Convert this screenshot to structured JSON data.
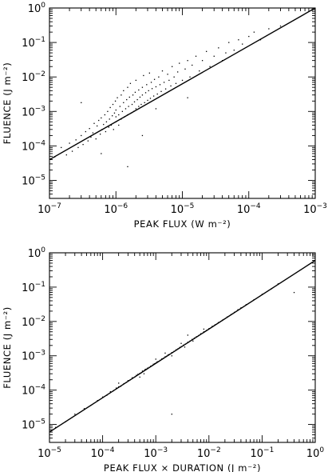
{
  "chart_data": [
    {
      "type": "scatter",
      "title": "",
      "xlabel": "PEAK FLUX (W m⁻²)",
      "ylabel": "FLUENCE (J m⁻²)",
      "xscale": "log",
      "yscale": "log",
      "xlim": [
        1e-07,
        0.001
      ],
      "ylim": [
        3e-06,
        1
      ],
      "x_ticks": [
        {
          "value": 1e-07,
          "base": "10",
          "exp": "−7"
        },
        {
          "value": 1e-06,
          "base": "10",
          "exp": "−6"
        },
        {
          "value": 1e-05,
          "base": "10",
          "exp": "−5"
        },
        {
          "value": 0.0001,
          "base": "10",
          "exp": "−4"
        },
        {
          "value": 0.001,
          "base": "10",
          "exp": "−3"
        }
      ],
      "y_ticks": [
        {
          "value": 1e-05,
          "base": "10",
          "exp": "−5"
        },
        {
          "value": 0.0001,
          "base": "10",
          "exp": "−4"
        },
        {
          "value": 0.001,
          "base": "10",
          "exp": "−3"
        },
        {
          "value": 0.01,
          "base": "10",
          "exp": "−2"
        },
        {
          "value": 0.1,
          "base": "10",
          "exp": "−1"
        },
        {
          "value": 1,
          "base": "10",
          "exp": "0"
        }
      ],
      "grid": false,
      "fit_line": [
        [
          1e-07,
          4e-05
        ],
        [
          0.001,
          1.0
        ]
      ],
      "points": [
        [
          1.2e-07,
          4.8e-05
        ],
        [
          1.5e-07,
          9e-05
        ],
        [
          1.8e-07,
          5.5e-05
        ],
        [
          2e-07,
          0.00012
        ],
        [
          2.2e-07,
          7e-05
        ],
        [
          2.5e-07,
          0.00015
        ],
        [
          2.7e-07,
          9e-05
        ],
        [
          3e-07,
          0.0002
        ],
        [
          3.2e-07,
          0.00011
        ],
        [
          3.5e-07,
          0.00026
        ],
        [
          3.8e-07,
          0.00014
        ],
        [
          4e-07,
          0.00032
        ],
        [
          4.2e-07,
          0.00018
        ],
        [
          4.5e-07,
          0.00024
        ],
        [
          4.7e-07,
          0.00045
        ],
        [
          5e-07,
          0.00016
        ],
        [
          5.2e-07,
          0.00038
        ],
        [
          5.5e-07,
          0.00055
        ],
        [
          5.8e-07,
          0.00022
        ],
        [
          6e-07,
          0.00065
        ],
        [
          6.2e-07,
          0.0003
        ],
        [
          6.5e-07,
          0.00042
        ],
        [
          6.8e-07,
          0.0008
        ],
        [
          7e-07,
          0.00026
        ],
        [
          7.2e-07,
          0.0005
        ],
        [
          7.5e-07,
          0.001
        ],
        [
          7.8e-07,
          0.00035
        ],
        [
          8e-07,
          0.0006
        ],
        [
          8.2e-07,
          0.0013
        ],
        [
          8.5e-07,
          0.0004
        ],
        [
          8.8e-07,
          0.00075
        ],
        [
          9e-07,
          0.0016
        ],
        [
          9.2e-07,
          0.0003
        ],
        [
          9.5e-07,
          0.0009
        ],
        [
          9.8e-07,
          0.002
        ],
        [
          1e-06,
          0.0005
        ],
        [
          1e-06,
          0.0007
        ],
        [
          1e-06,
          0.0011
        ],
        [
          1.05e-06,
          0.0025
        ],
        [
          1.1e-06,
          0.0004
        ],
        [
          1.1e-06,
          0.0008
        ],
        [
          1.15e-06,
          0.0014
        ],
        [
          1.2e-06,
          0.003
        ],
        [
          1.2e-06,
          0.0006
        ],
        [
          1.25e-06,
          0.001
        ],
        [
          1.3e-06,
          0.0018
        ],
        [
          1.3e-06,
          0.004
        ],
        [
          1.35e-06,
          0.0007
        ],
        [
          1.4e-06,
          0.0012
        ],
        [
          1.45e-06,
          0.0022
        ],
        [
          1.5e-06,
          0.005
        ],
        [
          1.5e-06,
          0.0008
        ],
        [
          1.55e-06,
          0.0014
        ],
        [
          1.6e-06,
          0.0026
        ],
        [
          1.65e-06,
          0.0065
        ],
        [
          1.7e-06,
          0.0009
        ],
        [
          1.75e-06,
          0.0016
        ],
        [
          1.8e-06,
          0.003
        ],
        [
          1.85e-06,
          0.001
        ],
        [
          1.9e-06,
          0.0019
        ],
        [
          1.95e-06,
          0.0036
        ],
        [
          2e-06,
          0.0012
        ],
        [
          2e-06,
          0.008
        ],
        [
          2.1e-06,
          0.0022
        ],
        [
          2.2e-06,
          0.0014
        ],
        [
          2.2e-06,
          0.0042
        ],
        [
          2.3e-06,
          0.0026
        ],
        [
          2.4e-06,
          0.0016
        ],
        [
          2.5e-06,
          0.005
        ],
        [
          2.5e-06,
          0.003
        ],
        [
          2.6e-06,
          0.011
        ],
        [
          2.7e-06,
          0.0018
        ],
        [
          2.8e-06,
          0.0035
        ],
        [
          2.9e-06,
          0.006
        ],
        [
          3e-06,
          0.0021
        ],
        [
          3.1e-06,
          0.004
        ],
        [
          3.2e-06,
          0.013
        ],
        [
          3.3e-06,
          0.0024
        ],
        [
          3.4e-06,
          0.007
        ],
        [
          3.5e-06,
          0.0046
        ],
        [
          3.7e-06,
          0.0028
        ],
        [
          3.8e-06,
          0.0085
        ],
        [
          4e-06,
          0.0052
        ],
        [
          4.2e-06,
          0.0032
        ],
        [
          4.4e-06,
          0.01
        ],
        [
          4.6e-06,
          0.006
        ],
        [
          4.8e-06,
          0.0038
        ],
        [
          5e-06,
          0.015
        ],
        [
          5.3e-06,
          0.007
        ],
        [
          5.6e-06,
          0.0045
        ],
        [
          6e-06,
          0.012
        ],
        [
          6.3e-06,
          0.008
        ],
        [
          6.7e-06,
          0.0055
        ],
        [
          7e-06,
          0.02
        ],
        [
          7.5e-06,
          0.01
        ],
        [
          8e-06,
          0.0065
        ],
        [
          8.5e-06,
          0.014
        ],
        [
          9e-06,
          0.025
        ],
        [
          1e-05,
          0.008
        ],
        [
          1.1e-05,
          0.017
        ],
        [
          1.2e-05,
          0.03
        ],
        [
          1.3e-05,
          0.01
        ],
        [
          1.4e-05,
          0.022
        ],
        [
          1.6e-05,
          0.04
        ],
        [
          1.8e-05,
          0.015
        ],
        [
          2e-05,
          0.03
        ],
        [
          2.3e-05,
          0.055
        ],
        [
          2.6e-05,
          0.02
        ],
        [
          3e-05,
          0.04
        ],
        [
          3.5e-05,
          0.07
        ],
        [
          4e-05,
          0.03
        ],
        [
          4.5e-05,
          0.05
        ],
        [
          5e-05,
          0.1
        ],
        [
          6e-05,
          0.06
        ],
        [
          7e-05,
          0.12
        ],
        [
          8e-05,
          0.09
        ],
        [
          0.0001,
          0.15
        ],
        [
          0.00012,
          0.2
        ],
        [
          0.00015,
          0.12
        ],
        [
          0.0002,
          0.25
        ],
        [
          0.0003,
          0.3
        ],
        [
          1.5e-06,
          2.5e-05
        ],
        [
          2.5e-06,
          0.0002
        ],
        [
          4e-06,
          0.0012
        ],
        [
          1.2e-05,
          0.0025
        ],
        [
          3e-07,
          0.0018
        ],
        [
          6e-07,
          6e-05
        ]
      ]
    },
    {
      "type": "scatter",
      "title": "",
      "xlabel": "PEAK FLUX × DURATION (J m⁻²)",
      "ylabel": "FLUENCE (J m⁻²)",
      "xscale": "log",
      "yscale": "log",
      "xlim": [
        1e-05,
        1
      ],
      "ylim": [
        3e-06,
        1
      ],
      "x_ticks": [
        {
          "value": 1e-05,
          "base": "10",
          "exp": "−5"
        },
        {
          "value": 0.0001,
          "base": "10",
          "exp": "−4"
        },
        {
          "value": 0.001,
          "base": "10",
          "exp": "−3"
        },
        {
          "value": 0.01,
          "base": "10",
          "exp": "−2"
        },
        {
          "value": 0.1,
          "base": "10",
          "exp": "−1"
        },
        {
          "value": 1,
          "base": "10",
          "exp": "0"
        }
      ],
      "y_ticks": [
        {
          "value": 1e-05,
          "base": "10",
          "exp": "−5"
        },
        {
          "value": 0.0001,
          "base": "10",
          "exp": "−4"
        },
        {
          "value": 0.001,
          "base": "10",
          "exp": "−3"
        },
        {
          "value": 0.01,
          "base": "10",
          "exp": "−2"
        },
        {
          "value": 0.1,
          "base": "10",
          "exp": "−1"
        },
        {
          "value": 1,
          "base": "10",
          "exp": "0"
        }
      ],
      "grid": false,
      "fit_line": [
        [
          1e-05,
          6e-06
        ],
        [
          1,
          0.6
        ]
      ],
      "points": [
        [
          1.3e-05,
          8.2e-06
        ],
        [
          2e-05,
          1.2e-05
        ],
        [
          3e-05,
          2e-05
        ],
        [
          4.5e-05,
          2.9e-05
        ],
        [
          6e-05,
          3.6e-05
        ],
        [
          8e-05,
          5e-05
        ],
        [
          0.0001,
          6.3e-05
        ],
        [
          0.00012,
          7.1e-05
        ],
        [
          0.00014,
          9e-05
        ],
        [
          0.00016,
          9.6e-05
        ],
        [
          0.00018,
          0.000115
        ],
        [
          0.0002,
          0.000125
        ],
        [
          0.00022,
          0.00013
        ],
        [
          0.00025,
          0.000155
        ],
        [
          0.00028,
          0.00017
        ],
        [
          0.0003,
          0.00019
        ],
        [
          0.00033,
          0.0002
        ],
        [
          0.00036,
          0.00023
        ],
        [
          0.0004,
          0.00024
        ],
        [
          0.00043,
          0.00027
        ],
        [
          0.00046,
          0.00029
        ],
        [
          0.0005,
          0.00031
        ],
        [
          0.00053,
          0.00032
        ],
        [
          0.00056,
          0.00036
        ],
        [
          0.0006,
          0.00037
        ],
        [
          0.00063,
          0.0004
        ],
        [
          0.00066,
          0.00041
        ],
        [
          0.0007,
          0.00044
        ],
        [
          0.00075,
          0.00046
        ],
        [
          0.0008,
          0.0005
        ],
        [
          0.00085,
          0.00052
        ],
        [
          0.0009,
          0.00057
        ],
        [
          0.00095,
          0.00059
        ],
        [
          0.001,
          0.00062
        ],
        [
          0.00105,
          0.00066
        ],
        [
          0.0011,
          0.00068
        ],
        [
          0.0012,
          0.00074
        ],
        [
          0.0013,
          0.00082
        ],
        [
          0.0014,
          0.00086
        ],
        [
          0.0015,
          0.00094
        ],
        [
          0.0016,
          0.00098
        ],
        [
          0.0017,
          0.00107
        ],
        [
          0.0018,
          0.0011
        ],
        [
          0.002,
          0.00125
        ],
        [
          0.0022,
          0.00135
        ],
        [
          0.0024,
          0.0015
        ],
        [
          0.0026,
          0.0016
        ],
        [
          0.0028,
          0.00175
        ],
        [
          0.003,
          0.00185
        ],
        [
          0.0033,
          0.00205
        ],
        [
          0.0036,
          0.0022
        ],
        [
          0.004,
          0.0025
        ],
        [
          0.0044,
          0.0027
        ],
        [
          0.0048,
          0.003
        ],
        [
          0.0053,
          0.0033
        ],
        [
          0.0058,
          0.0036
        ],
        [
          0.0064,
          0.0039
        ],
        [
          0.007,
          0.0044
        ],
        [
          0.008,
          0.005
        ],
        [
          0.009,
          0.0055
        ],
        [
          0.01,
          0.0062
        ],
        [
          0.0115,
          0.0072
        ],
        [
          0.013,
          0.008
        ],
        [
          0.015,
          0.0093
        ],
        [
          0.018,
          0.011
        ],
        [
          0.022,
          0.0135
        ],
        [
          0.026,
          0.016
        ],
        [
          0.03,
          0.0185
        ],
        [
          0.035,
          0.022
        ],
        [
          0.04,
          0.025
        ],
        [
          0.05,
          0.031
        ],
        [
          0.07,
          0.043
        ],
        [
          0.1,
          0.062
        ],
        [
          0.15,
          0.09
        ],
        [
          0.2,
          0.125
        ],
        [
          0.4,
          0.07
        ],
        [
          0.0002,
          0.00016
        ],
        [
          0.0005,
          0.00024
        ],
        [
          0.001,
          0.0008
        ],
        [
          0.002,
          0.001
        ],
        [
          0.003,
          0.0023
        ],
        [
          0.005,
          0.0027
        ],
        [
          0.008,
          0.006
        ],
        [
          0.002,
          2e-05
        ],
        [
          0.004,
          0.004
        ],
        [
          0.0006,
          0.0003
        ],
        [
          0.0015,
          0.0012
        ],
        [
          0.0035,
          0.0018
        ]
      ]
    }
  ]
}
